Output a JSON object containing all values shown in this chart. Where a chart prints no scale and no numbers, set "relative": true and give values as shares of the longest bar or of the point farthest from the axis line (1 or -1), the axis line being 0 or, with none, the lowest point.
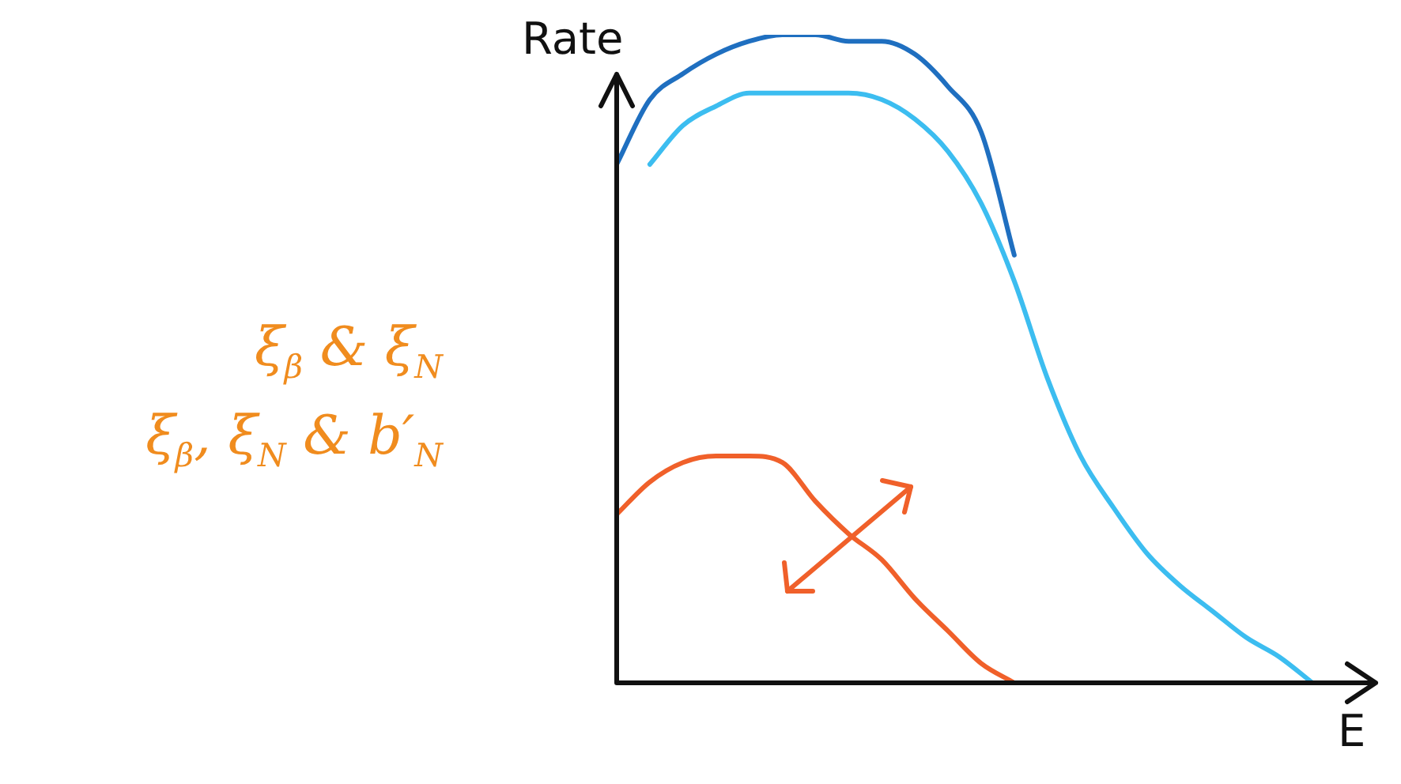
{
  "chart_data": {
    "type": "line",
    "relative": true,
    "ylabel": "Rate",
    "xlabel": "E",
    "legend": false,
    "marker": "none",
    "line_style": "solid",
    "annotations": [
      "ξ$_{β}$ & ξ$_{N}$",
      "ξ$_{β}$, ξ$_{N}$ & b′$_{N}$"
    ],
    "categories": [
      null,
      null,
      null,
      null,
      null,
      null,
      null,
      null,
      null,
      null,
      null,
      null,
      null,
      null,
      null,
      null,
      null,
      null,
      null,
      null,
      null,
      null
    ],
    "series": [
      {
        "color": "#1f6fc0",
        "values": [
          0.8,
          0.9,
          0.94,
          0.97,
          0.99,
          1.0,
          1.0,
          0.99,
          0.99,
          0.97,
          0.92,
          0.85,
          0.66,
          null,
          null,
          null,
          null,
          null,
          null,
          null,
          null,
          null
        ]
      },
      {
        "color": "#3cbdf0",
        "values": [
          null,
          0.8,
          0.86,
          0.89,
          0.91,
          0.91,
          0.91,
          0.91,
          0.9,
          0.87,
          0.82,
          0.74,
          0.62,
          0.47,
          0.35,
          0.27,
          0.2,
          0.15,
          0.11,
          0.07,
          0.04,
          0.0
        ]
      },
      {
        "color": "#f0602a",
        "values": [
          0.26,
          0.31,
          0.34,
          0.35,
          0.35,
          0.34,
          0.28,
          0.23,
          0.19,
          0.13,
          0.08,
          0.03,
          0.0,
          null,
          null,
          null,
          null,
          null,
          null,
          null,
          null,
          null
        ]
      }
    ]
  }
}
